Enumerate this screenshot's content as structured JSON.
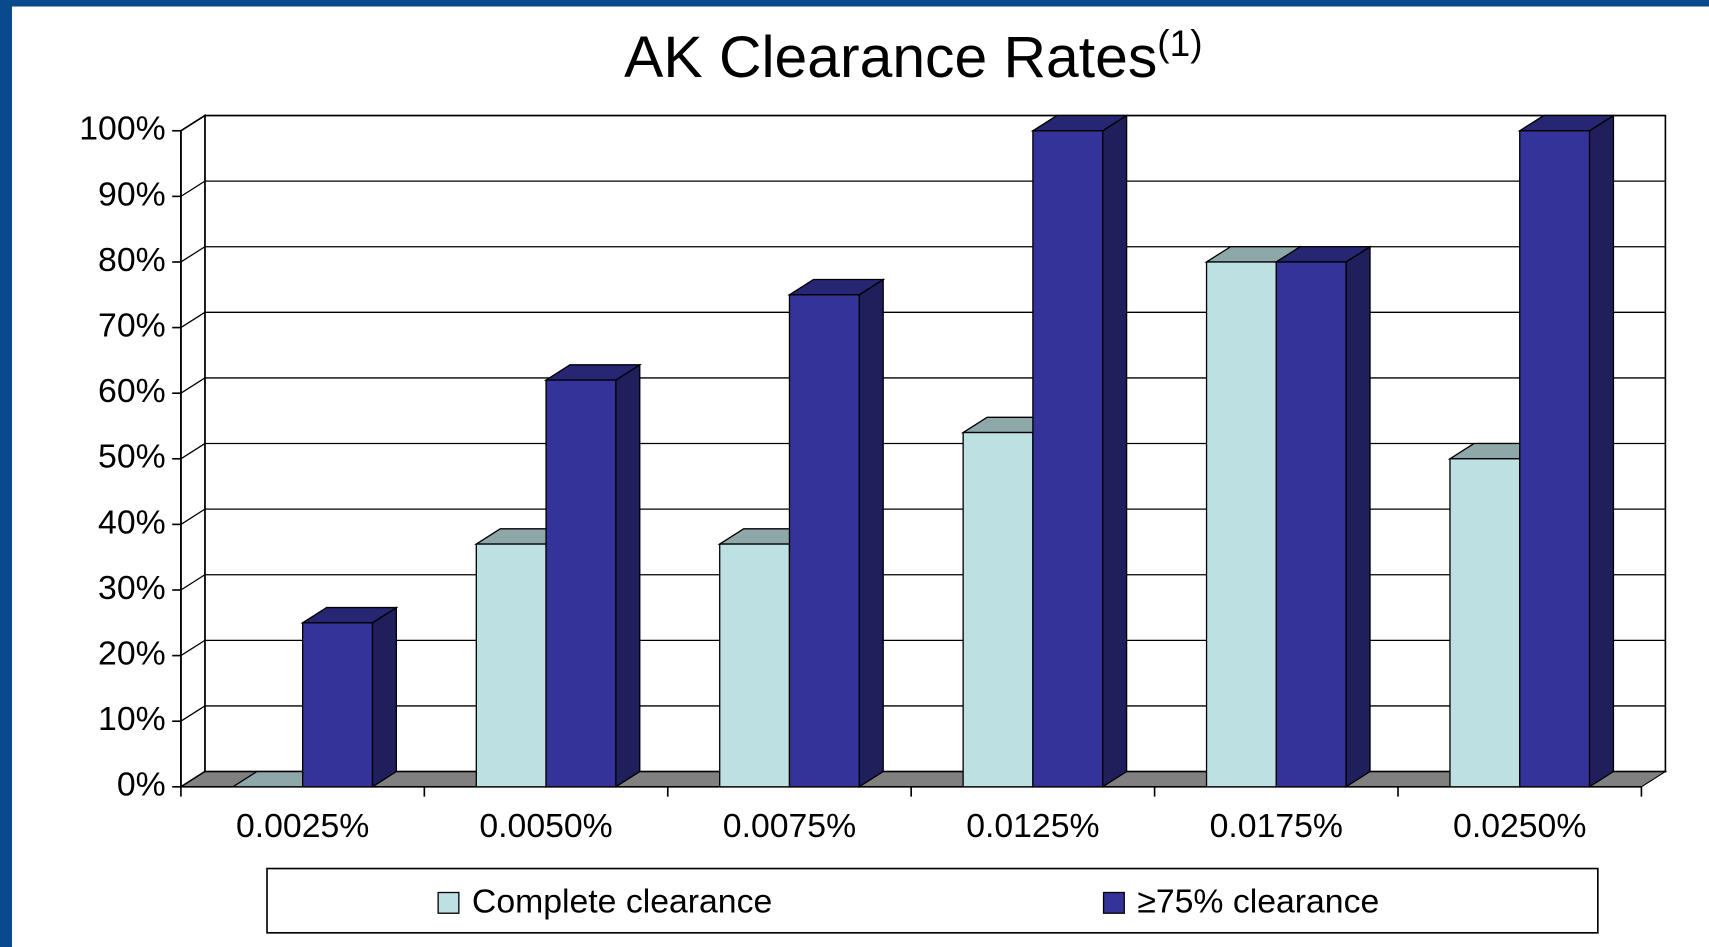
{
  "chart_data": {
    "type": "bar3d",
    "title": "AK Clearance Rates",
    "title_superscript": "(1)",
    "categories": [
      "0.0025%",
      "0.0050%",
      "0.0075%",
      "0.0125%",
      "0.0175%",
      "0.0250%"
    ],
    "series": [
      {
        "name": "Complete clearance",
        "color": "#bde0e3",
        "values": [
          0,
          37,
          37,
          54,
          80,
          50
        ]
      },
      {
        "name": "≥75% clearance",
        "color": "#333399",
        "values": [
          25,
          62,
          75,
          100,
          80,
          100
        ]
      }
    ],
    "ylim": [
      0,
      100
    ],
    "yticks": [
      {
        "value": 0,
        "label": "0%"
      },
      {
        "value": 10,
        "label": "10%"
      },
      {
        "value": 20,
        "label": "20%"
      },
      {
        "value": 30,
        "label": "30%"
      },
      {
        "value": 40,
        "label": "40%"
      },
      {
        "value": 50,
        "label": "50%"
      },
      {
        "value": 60,
        "label": "60%"
      },
      {
        "value": 70,
        "label": "70%"
      },
      {
        "value": 80,
        "label": "80%"
      },
      {
        "value": 90,
        "label": "90%"
      },
      {
        "value": 100,
        "label": "100%"
      }
    ],
    "grid": true,
    "legend": "bottom"
  }
}
